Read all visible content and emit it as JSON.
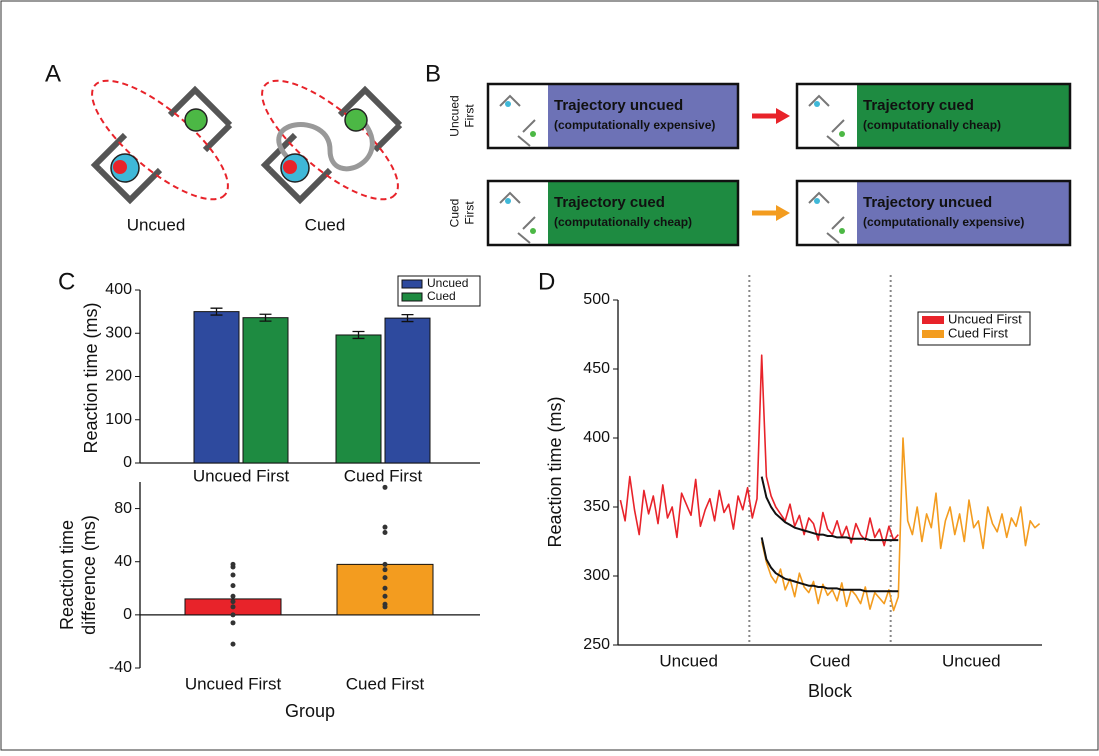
{
  "panel_a": {
    "letter": "A",
    "labels": [
      "Uncued",
      "Cued"
    ]
  },
  "panel_b": {
    "letter": "B",
    "rows": [
      {
        "label": [
          "Uncued",
          "First"
        ],
        "color": "#e8232a",
        "boxes": [
          {
            "title": "Trajectory uncued",
            "note": "(computationally expensive)",
            "color": "#6d72b6"
          },
          {
            "title": "Trajectory cued",
            "note": "(computationally cheap)",
            "color": "#1e8b41"
          }
        ]
      },
      {
        "label": [
          "Cued",
          "First"
        ],
        "color": "#f39c1f",
        "boxes": [
          {
            "title": "Trajectory cued",
            "note": "(computationally cheap)",
            "color": "#1e8b41"
          },
          {
            "title": "Trajectory uncued",
            "note": "(computationally expensive)",
            "color": "#6d72b6"
          }
        ]
      }
    ]
  },
  "panel_c": {
    "letter": "C"
  },
  "panel_d": {
    "letter": "D"
  },
  "chart_data": [
    {
      "type": "grouped_bar",
      "categories": [
        "Uncued First",
        "Cued First"
      ],
      "ylabel": "Reaction time (ms)",
      "series": [
        {
          "name": "Uncued",
          "color": "#2e4a9e",
          "values": [
            350,
            335
          ],
          "errors": [
            8,
            8
          ]
        },
        {
          "name": "Cued",
          "color": "#1e8b41",
          "values": [
            336,
            296
          ],
          "errors": [
            8,
            8
          ]
        }
      ],
      "order": [
        [
          0,
          1
        ],
        [
          1,
          0
        ]
      ],
      "ylim": [
        0,
        400
      ],
      "yticks": [
        0,
        100,
        200,
        300,
        400
      ]
    },
    {
      "type": "bar",
      "categories": [
        "Uncued First",
        "Cued First"
      ],
      "ylabel": [
        "Reaction time",
        "difference (ms)"
      ],
      "xlabel": "Group",
      "values": [
        12,
        38
      ],
      "colors": [
        "#e8232a",
        "#f39c1f"
      ],
      "points": [
        [
          38,
          36,
          30,
          22,
          14,
          10,
          6,
          0,
          -6,
          -22
        ],
        [
          96,
          66,
          62,
          38,
          34,
          28,
          20,
          14,
          8,
          6
        ]
      ],
      "ylim": [
        -40,
        100
      ],
      "yticks": [
        -40,
        0,
        40,
        80
      ]
    },
    {
      "type": "line",
      "xlabel": "Block",
      "ylabel": "Reaction time (ms)",
      "blocks": [
        "Uncued",
        "Cued",
        "Uncued"
      ],
      "series": [
        {
          "name": "Uncued First",
          "color": "#e8232a",
          "values": [
            355,
            340,
            372,
            348,
            330,
            362,
            345,
            358,
            338,
            366,
            342,
            350,
            328,
            360,
            352,
            344,
            370,
            336,
            348,
            356,
            340,
            362,
            346,
            352,
            334,
            358,
            348,
            364,
            342,
            356,
            460,
            372,
            358,
            350,
            345,
            340,
            352,
            336,
            344,
            330,
            342,
            338,
            326,
            346,
            334,
            330,
            340,
            328,
            336,
            324,
            338,
            330,
            326,
            342,
            328,
            334,
            322,
            336,
            326,
            330,
            null,
            null,
            null,
            null,
            null,
            null,
            null,
            null,
            null,
            null,
            null,
            null,
            null,
            null,
            null,
            null,
            null,
            null,
            null,
            null,
            null,
            null,
            null,
            null,
            null,
            null,
            null,
            null,
            null,
            null
          ]
        },
        {
          "name": "Cued First",
          "color": "#f39c1f",
          "values": [
            null,
            null,
            null,
            null,
            null,
            null,
            null,
            null,
            null,
            null,
            null,
            null,
            null,
            null,
            null,
            null,
            null,
            null,
            null,
            null,
            null,
            null,
            null,
            null,
            null,
            null,
            null,
            null,
            null,
            null,
            325,
            310,
            300,
            295,
            305,
            290,
            298,
            285,
            302,
            292,
            288,
            296,
            280,
            294,
            286,
            290,
            282,
            295,
            278,
            290,
            286,
            280,
            292,
            276,
            288,
            284,
            280,
            290,
            275,
            285,
            400,
            340,
            330,
            350,
            325,
            345,
            335,
            360,
            320,
            340,
            350,
            330,
            345,
            325,
            355,
            335,
            340,
            320,
            350,
            338,
            332,
            345,
            328,
            342,
            336,
            350,
            322,
            340,
            335,
            338
          ]
        }
      ],
      "fits": [
        {
          "color": "#111111",
          "values": [
            null,
            null,
            null,
            null,
            null,
            null,
            null,
            null,
            null,
            null,
            null,
            null,
            null,
            null,
            null,
            null,
            null,
            null,
            null,
            null,
            null,
            null,
            null,
            null,
            null,
            null,
            null,
            null,
            null,
            null,
            372,
            357,
            350,
            345,
            342,
            339,
            337,
            335,
            334,
            333,
            332,
            331,
            330,
            330,
            329,
            329,
            328,
            328,
            328,
            327,
            327,
            327,
            327,
            326,
            326,
            326,
            326,
            326,
            326,
            326
          ]
        },
        {
          "color": "#111111",
          "values": [
            null,
            null,
            null,
            null,
            null,
            null,
            null,
            null,
            null,
            null,
            null,
            null,
            null,
            null,
            null,
            null,
            null,
            null,
            null,
            null,
            null,
            null,
            null,
            null,
            null,
            null,
            null,
            null,
            null,
            null,
            328,
            312,
            306,
            302,
            300,
            298,
            297,
            296,
            295,
            294,
            293,
            293,
            292,
            292,
            291,
            291,
            291,
            290,
            290,
            290,
            290,
            290,
            289,
            289,
            289,
            289,
            289,
            289,
            289,
            289
          ]
        }
      ],
      "ylim": [
        250,
        500
      ],
      "yticks": [
        250,
        300,
        350,
        400,
        450,
        500
      ]
    }
  ]
}
